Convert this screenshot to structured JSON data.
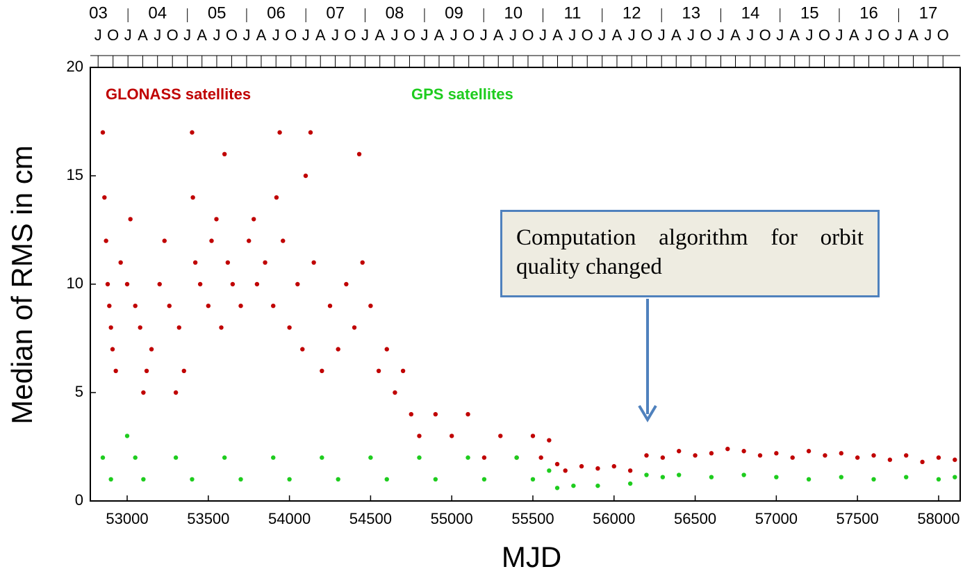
{
  "chart_data": {
    "type": "scatter",
    "xlabel": "MJD",
    "ylabel": "Median of RMS in cm",
    "annotation": "Computation algorithm for orbit quality changed",
    "xlim": [
      52773,
      58133
    ],
    "ylim": [
      0,
      20
    ],
    "xticks": [
      53000,
      53500,
      54000,
      54500,
      55000,
      55500,
      56000,
      56500,
      57000,
      57500,
      58000
    ],
    "yticks": [
      0,
      5,
      10,
      15,
      20
    ],
    "year_ticks": [
      {
        "value": 52640,
        "label": "03"
      },
      {
        "value": 53005,
        "label": "04"
      },
      {
        "value": 53371,
        "label": "05"
      },
      {
        "value": 53736,
        "label": "06"
      },
      {
        "value": 54101,
        "label": "07"
      },
      {
        "value": 54466,
        "label": "08"
      },
      {
        "value": 54832,
        "label": "09"
      },
      {
        "value": 55197,
        "label": "10"
      },
      {
        "value": 55562,
        "label": "11"
      },
      {
        "value": 55927,
        "label": "12"
      },
      {
        "value": 56293,
        "label": "13"
      },
      {
        "value": 56658,
        "label": "14"
      },
      {
        "value": 57023,
        "label": "15"
      },
      {
        "value": 57388,
        "label": "16"
      },
      {
        "value": 57754,
        "label": "17"
      }
    ],
    "quarter_ticks": [
      {
        "value": 52821,
        "label": "J"
      },
      {
        "value": 52913,
        "label": "O"
      },
      {
        "value": 53005,
        "label": "J"
      },
      {
        "value": 53096,
        "label": "A"
      },
      {
        "value": 53187,
        "label": "J"
      },
      {
        "value": 53279,
        "label": "O"
      },
      {
        "value": 53371,
        "label": "J"
      },
      {
        "value": 53461,
        "label": "A"
      },
      {
        "value": 53552,
        "label": "J"
      },
      {
        "value": 53644,
        "label": "O"
      },
      {
        "value": 53736,
        "label": "J"
      },
      {
        "value": 53826,
        "label": "A"
      },
      {
        "value": 53917,
        "label": "J"
      },
      {
        "value": 54009,
        "label": "O"
      },
      {
        "value": 54101,
        "label": "J"
      },
      {
        "value": 54191,
        "label": "A"
      },
      {
        "value": 54282,
        "label": "J"
      },
      {
        "value": 54374,
        "label": "O"
      },
      {
        "value": 54466,
        "label": "J"
      },
      {
        "value": 54557,
        "label": "A"
      },
      {
        "value": 54648,
        "label": "J"
      },
      {
        "value": 54740,
        "label": "O"
      },
      {
        "value": 54832,
        "label": "J"
      },
      {
        "value": 54922,
        "label": "A"
      },
      {
        "value": 55013,
        "label": "J"
      },
      {
        "value": 55105,
        "label": "O"
      },
      {
        "value": 55197,
        "label": "J"
      },
      {
        "value": 55287,
        "label": "A"
      },
      {
        "value": 55378,
        "label": "J"
      },
      {
        "value": 55470,
        "label": "O"
      },
      {
        "value": 55562,
        "label": "J"
      },
      {
        "value": 55652,
        "label": "A"
      },
      {
        "value": 55743,
        "label": "J"
      },
      {
        "value": 55835,
        "label": "O"
      },
      {
        "value": 55927,
        "label": "J"
      },
      {
        "value": 56018,
        "label": "A"
      },
      {
        "value": 56109,
        "label": "J"
      },
      {
        "value": 56201,
        "label": "O"
      },
      {
        "value": 56293,
        "label": "J"
      },
      {
        "value": 56383,
        "label": "A"
      },
      {
        "value": 56474,
        "label": "J"
      },
      {
        "value": 56566,
        "label": "O"
      },
      {
        "value": 56658,
        "label": "J"
      },
      {
        "value": 56748,
        "label": "A"
      },
      {
        "value": 56839,
        "label": "J"
      },
      {
        "value": 56931,
        "label": "O"
      },
      {
        "value": 57023,
        "label": "J"
      },
      {
        "value": 57113,
        "label": "A"
      },
      {
        "value": 57204,
        "label": "J"
      },
      {
        "value": 57296,
        "label": "O"
      },
      {
        "value": 57388,
        "label": "J"
      },
      {
        "value": 57479,
        "label": "A"
      },
      {
        "value": 57570,
        "label": "J"
      },
      {
        "value": 57662,
        "label": "O"
      },
      {
        "value": 57754,
        "label": "J"
      },
      {
        "value": 57844,
        "label": "A"
      },
      {
        "value": 57935,
        "label": "J"
      },
      {
        "value": 58027,
        "label": "O"
      }
    ],
    "series": [
      {
        "name": "GLONASS satellites",
        "color": "#c00000",
        "x": [
          52850,
          52860,
          52870,
          52880,
          52890,
          52900,
          52910,
          52930,
          52960,
          53000,
          53020,
          53050,
          53080,
          53100,
          53120,
          53150,
          53200,
          53230,
          53260,
          53300,
          53320,
          53350,
          53400,
          53405,
          53420,
          53450,
          53500,
          53520,
          53550,
          53580,
          53600,
          53620,
          53650,
          53700,
          53750,
          53780,
          53800,
          53850,
          53900,
          53920,
          53940,
          53960,
          54000,
          54050,
          54080,
          54100,
          54130,
          54150,
          54200,
          54250,
          54300,
          54350,
          54400,
          54430,
          54450,
          54500,
          54550,
          54600,
          54650,
          54700,
          54750,
          54800,
          54900,
          55000,
          55100,
          55200,
          55300,
          55400,
          55500,
          55550,
          55600,
          55650,
          55700,
          55800,
          55900,
          56000,
          56100,
          56200,
          56300,
          56400,
          56500,
          56600,
          56700,
          56800,
          56900,
          57000,
          57100,
          57200,
          57300,
          57400,
          57500,
          57600,
          57700,
          57800,
          57900,
          58000,
          58100
        ],
        "y": [
          17,
          14,
          12,
          10,
          9,
          8,
          7,
          6,
          11,
          10,
          13,
          9,
          8,
          5,
          6,
          7,
          10,
          12,
          9,
          5,
          8,
          6,
          17,
          14,
          11,
          10,
          9,
          12,
          13,
          8,
          16,
          11,
          10,
          9,
          12,
          13,
          10,
          11,
          9,
          14,
          17,
          12,
          8,
          10,
          7,
          15,
          17,
          11,
          6,
          9,
          7,
          10,
          8,
          16,
          11,
          9,
          6,
          7,
          5,
          6,
          4,
          3,
          4,
          3,
          4,
          2,
          3,
          2,
          3,
          2,
          2.8,
          1.7,
          1.4,
          1.6,
          1.5,
          1.6,
          1.4,
          2.1,
          2,
          2.3,
          2.1,
          2.2,
          2.4,
          2.3,
          2.1,
          2.2,
          2,
          2.3,
          2.1,
          2.2,
          2,
          2.1,
          1.9,
          2.1,
          1.8,
          2,
          1.9
        ]
      },
      {
        "name": "GPS satellites",
        "color": "#1ecc1e",
        "x": [
          52850,
          52900,
          53000,
          53050,
          53100,
          53300,
          53400,
          53600,
          53700,
          53900,
          54000,
          54200,
          54300,
          54500,
          54600,
          54800,
          54900,
          55100,
          55200,
          55400,
          55500,
          55600,
          55650,
          55750,
          55900,
          56100,
          56200,
          56300,
          56400,
          56600,
          56800,
          57000,
          57200,
          57400,
          57600,
          57800,
          58000,
          58100
        ],
        "y": [
          2,
          1,
          3,
          2,
          1,
          2,
          1,
          2,
          1,
          2,
          1,
          2,
          1,
          2,
          1,
          2,
          1,
          2,
          1,
          2,
          1,
          1.4,
          0.6,
          0.7,
          0.7,
          0.8,
          1.2,
          1.1,
          1.2,
          1.1,
          1.2,
          1.1,
          1,
          1.1,
          1,
          1.1,
          1,
          1.1
        ]
      }
    ]
  }
}
